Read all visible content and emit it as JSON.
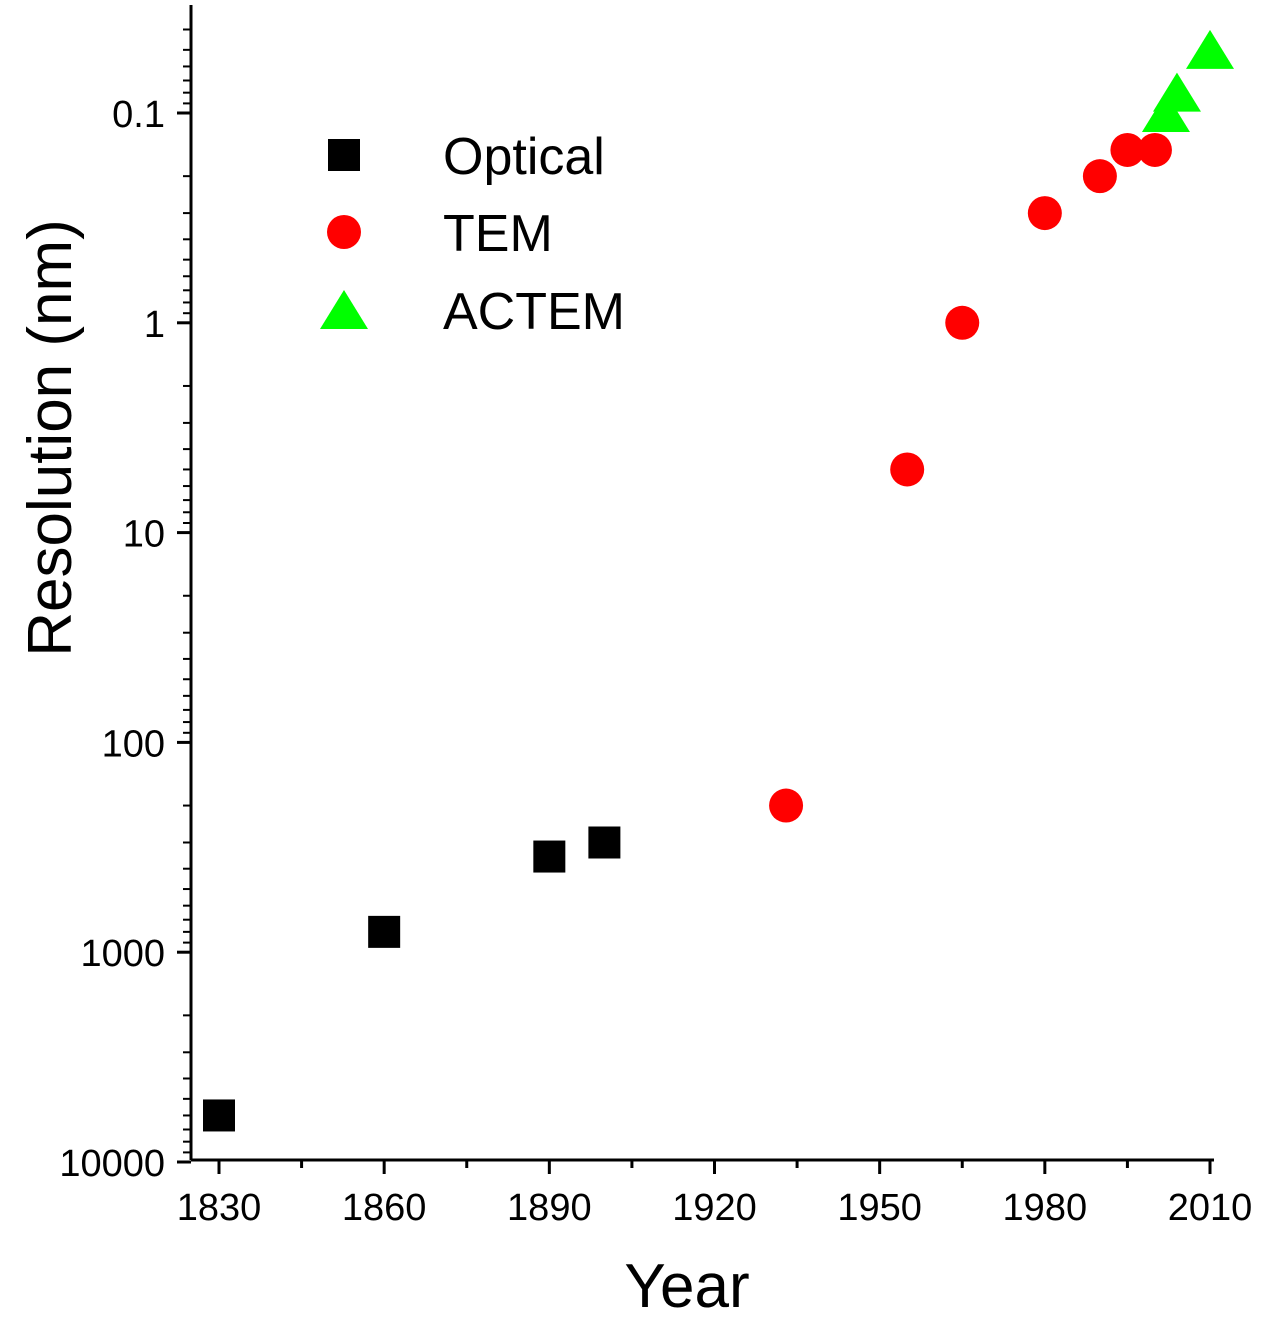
{
  "chart_data": {
    "type": "scatter",
    "xlabel": "Year",
    "ylabel": "Resolution (nm)",
    "x_range": [
      1828,
      2010
    ],
    "y_scale": "log",
    "y_reversed": true,
    "y_range": [
      0.03,
      10000
    ],
    "x_ticks": [
      1830,
      1860,
      1890,
      1920,
      1950,
      1980,
      2010
    ],
    "x_tick_labels": [
      "1830",
      "1860",
      "1890",
      "1920",
      "1950",
      "1980",
      "2010"
    ],
    "y_ticks": [
      0.1,
      1,
      10,
      100,
      1000,
      10000
    ],
    "y_tick_labels": [
      "0.1",
      "1",
      "10",
      "100",
      "1000",
      "10000"
    ],
    "legend_position": "top-left",
    "grid": false,
    "series": [
      {
        "name": "Optical",
        "marker": "square",
        "color": "#000000",
        "points": [
          {
            "x": 1830,
            "y": 6000
          },
          {
            "x": 1860,
            "y": 800
          },
          {
            "x": 1890,
            "y": 350
          },
          {
            "x": 1900,
            "y": 300
          }
        ]
      },
      {
        "name": "TEM",
        "marker": "circle",
        "color": "#ff0000",
        "points": [
          {
            "x": 1933,
            "y": 200
          },
          {
            "x": 1955,
            "y": 5
          },
          {
            "x": 1965,
            "y": 1
          },
          {
            "x": 1980,
            "y": 0.3
          },
          {
            "x": 1990,
            "y": 0.2
          },
          {
            "x": 1995,
            "y": 0.15
          },
          {
            "x": 2000,
            "y": 0.15
          }
        ]
      },
      {
        "name": "ACTEM",
        "marker": "triangle",
        "color": "#00ff00",
        "points": [
          {
            "x": 2002,
            "y": 0.1
          },
          {
            "x": 2004,
            "y": 0.08
          },
          {
            "x": 2010,
            "y": 0.05
          }
        ]
      }
    ]
  }
}
